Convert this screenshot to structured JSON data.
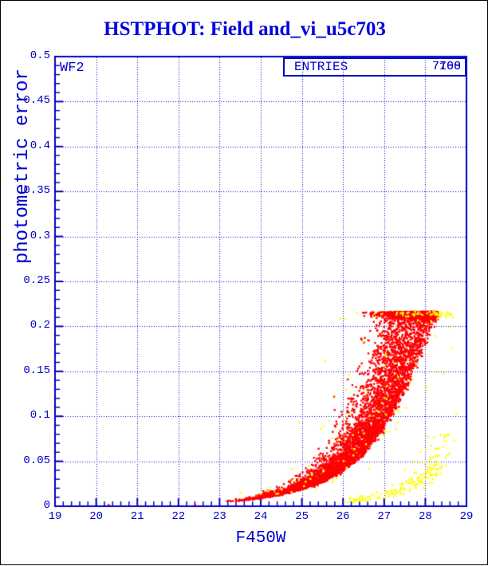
{
  "title": "HSTPHOT: Field and_vi_u5c703",
  "camera_label": "WF2",
  "entries_box": {
    "label": "ENTRIES",
    "values": [
      "7700",
      "7168"
    ]
  },
  "colors": {
    "axis_blue": "#0000c8",
    "title_blue": "#0000dd",
    "red_points": "#ff0000",
    "yellow_points": "#ffff00",
    "background": "#ffffff"
  },
  "chart_data": {
    "type": "scatter",
    "title": "HSTPHOT: Field and_vi_u5c703",
    "xlabel": "F450W",
    "ylabel": "photometric error",
    "xlim": [
      19,
      29
    ],
    "ylim": [
      0,
      0.5
    ],
    "grid": "dotted at every major tick",
    "legend_position": "none",
    "entries_counts": [
      7700,
      7168
    ],
    "x_ticks": [
      {
        "v": 19,
        "label": "19"
      },
      {
        "v": 20,
        "label": "20"
      },
      {
        "v": 21,
        "label": "21"
      },
      {
        "v": 22,
        "label": "22"
      },
      {
        "v": 23,
        "label": "23"
      },
      {
        "v": 24,
        "label": "24"
      },
      {
        "v": 25,
        "label": "25"
      },
      {
        "v": 26,
        "label": "26"
      },
      {
        "v": 27,
        "label": "27"
      },
      {
        "v": 28,
        "label": "28"
      },
      {
        "v": 29,
        "label": "29"
      }
    ],
    "y_ticks": [
      {
        "v": 0,
        "label": "0"
      },
      {
        "v": 0.05,
        "label": "0.05"
      },
      {
        "v": 0.1,
        "label": "0.1"
      },
      {
        "v": 0.15,
        "label": "0.15"
      },
      {
        "v": 0.2,
        "label": "0.2"
      },
      {
        "v": 0.25,
        "label": "0.25"
      },
      {
        "v": 0.3,
        "label": "0.3"
      },
      {
        "v": 0.35,
        "label": "0.35"
      },
      {
        "v": 0.4,
        "label": "0.4"
      },
      {
        "v": 0.45,
        "label": "0.45"
      },
      {
        "v": 0.5,
        "label": "0.5"
      }
    ],
    "x_minor_step": 0.2,
    "y_minor_step": 0.01,
    "error_cap": 0.2165,
    "series": [
      {
        "name": "red-detections",
        "color": "#ff0000",
        "marker": "square-2px",
        "count": 6000,
        "kind": "band",
        "x_min": 23.05,
        "x_span": 5.2,
        "x_pow": 0.4,
        "x_jitter": 0.04,
        "sym_sigma": 0.04,
        "tail_sigma0": 0.15,
        "tail_sigma1": 0.55,
        "tail_pow": 1.5,
        "cap": 0.2165,
        "locus": [
          [
            23.05,
            0.0045
          ],
          [
            23.5,
            0.0062
          ],
          [
            24.0,
            0.009
          ],
          [
            24.5,
            0.013
          ],
          [
            25.0,
            0.019
          ],
          [
            25.5,
            0.027
          ],
          [
            26.0,
            0.04
          ],
          [
            26.5,
            0.058
          ],
          [
            27.0,
            0.088
          ],
          [
            27.5,
            0.13
          ],
          [
            28.0,
            0.185
          ],
          [
            28.25,
            0.217
          ]
        ],
        "extra_points": [
          [
            20.3,
            0.0015
          ],
          [
            21.0,
            0.001
          ],
          [
            22.4,
            0.0015
          ]
        ]
      },
      {
        "name": "yellow-outliers",
        "color": "#ffff00",
        "marker": "square-2px",
        "count": 130,
        "kind": "band",
        "x_min": 23.3,
        "x_span": 5.3,
        "x_pow": 0.45,
        "x_jitter": 0.06,
        "sym_sigma": 0.35,
        "tail_sigma0": 0.3,
        "tail_sigma1": 0.8,
        "tail_pow": 1.0,
        "cap": 0.2165,
        "locus": [
          [
            23.05,
            0.0045
          ],
          [
            23.5,
            0.0062
          ],
          [
            24.0,
            0.009
          ],
          [
            24.5,
            0.013
          ],
          [
            25.0,
            0.019
          ],
          [
            25.5,
            0.027
          ],
          [
            26.0,
            0.04
          ],
          [
            26.5,
            0.058
          ],
          [
            27.0,
            0.088
          ],
          [
            27.5,
            0.13
          ],
          [
            28.0,
            0.185
          ],
          [
            28.25,
            0.217
          ]
        ],
        "extra_points": [
          [
            26.33,
            0.215
          ],
          [
            28.45,
            0.148
          ],
          [
            28.3,
            0.15
          ],
          [
            23.5,
            0.015
          ],
          [
            24.0,
            0.014
          ]
        ]
      },
      {
        "name": "yellow-low-sequence",
        "color": "#ffff00",
        "marker": "square-2px",
        "count": 170,
        "kind": "band",
        "x_min": 25.85,
        "x_span": 2.7,
        "x_pow": 0.55,
        "x_jitter": 0.05,
        "sym_sigma": 0.22,
        "tail_sigma0": 0.12,
        "tail_sigma1": 0.2,
        "tail_pow": 1.0,
        "cap": 0.08,
        "locus": [
          [
            25.8,
            0.004
          ],
          [
            26.3,
            0.006
          ],
          [
            26.8,
            0.009
          ],
          [
            27.2,
            0.013
          ],
          [
            27.6,
            0.019
          ],
          [
            28.0,
            0.028
          ],
          [
            28.3,
            0.04
          ],
          [
            28.55,
            0.055
          ]
        ],
        "extra_points": [
          [
            28.7,
            0.073
          ],
          [
            28.75,
            0.103
          ]
        ]
      }
    ]
  }
}
